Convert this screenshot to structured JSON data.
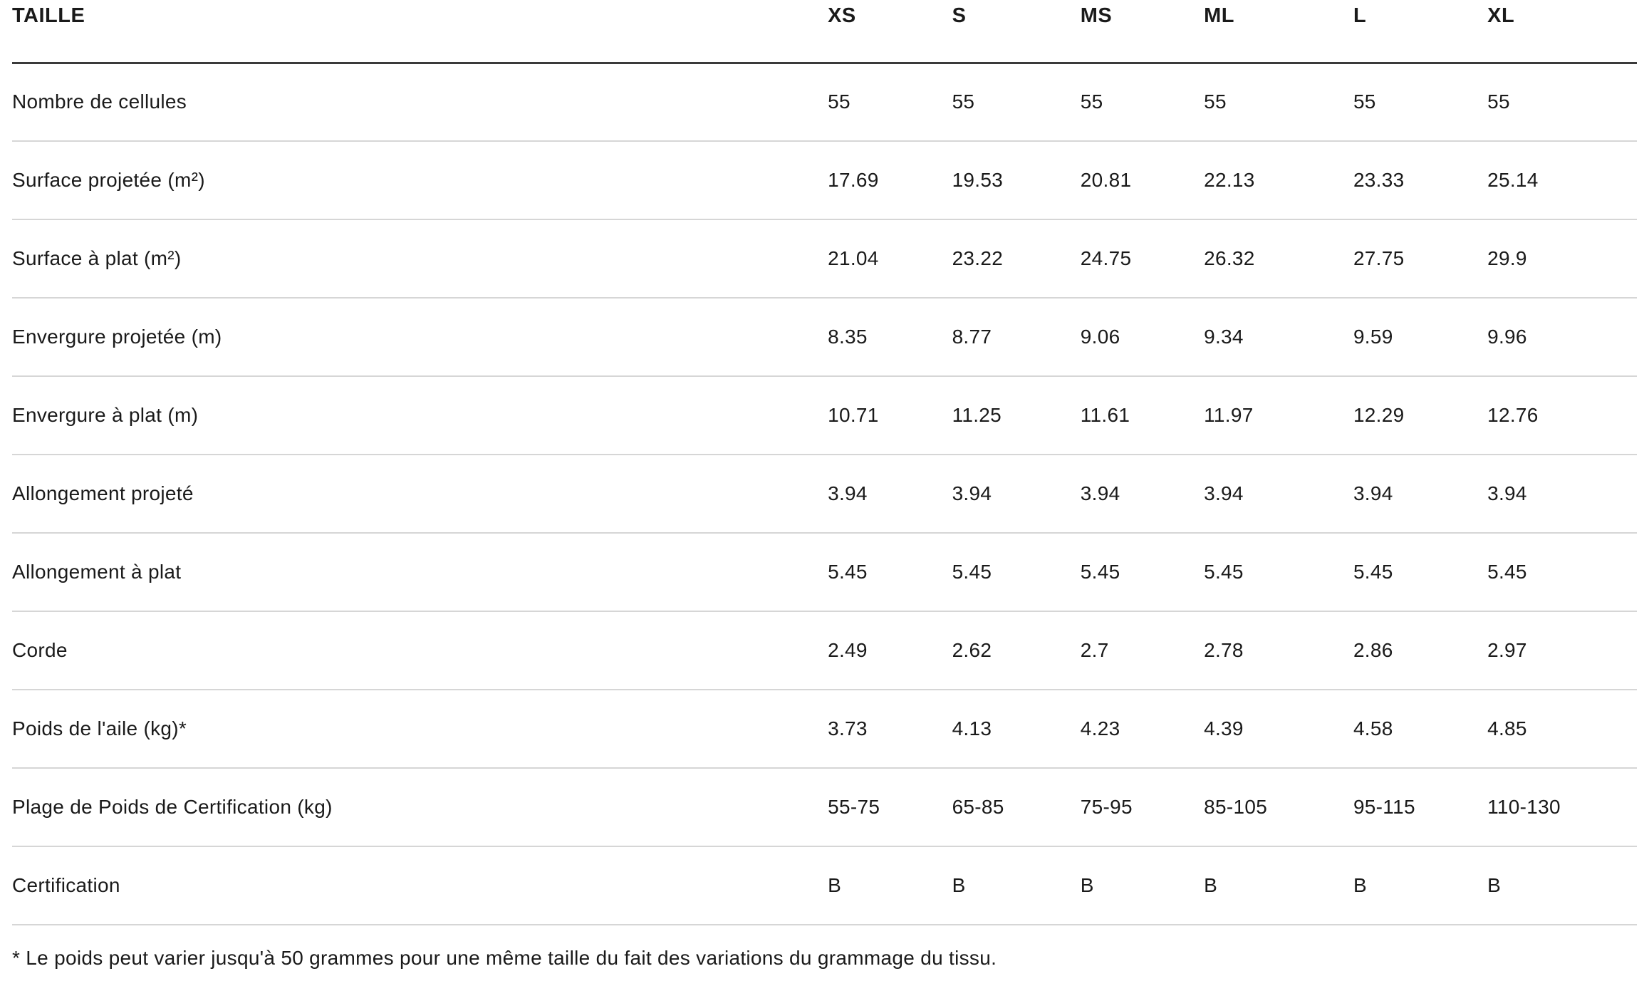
{
  "table": {
    "header": {
      "label": "TAILLE",
      "columns": [
        "XS",
        "S",
        "MS",
        "ML",
        "L",
        "XL"
      ]
    },
    "rows": [
      {
        "label": "Nombre de cellules",
        "values": [
          "55",
          "55",
          "55",
          "55",
          "55",
          "55"
        ]
      },
      {
        "label": "Surface projetée (m²)",
        "values": [
          "17.69",
          "19.53",
          "20.81",
          "22.13",
          "23.33",
          "25.14"
        ]
      },
      {
        "label": "Surface à plat (m²)",
        "values": [
          "21.04",
          "23.22",
          "24.75",
          "26.32",
          "27.75",
          "29.9"
        ]
      },
      {
        "label": "Envergure projetée (m)",
        "values": [
          "8.35",
          "8.77",
          "9.06",
          "9.34",
          "9.59",
          "9.96"
        ]
      },
      {
        "label": "Envergure à plat (m)",
        "values": [
          "10.71",
          "11.25",
          "11.61",
          "11.97",
          "12.29",
          "12.76"
        ]
      },
      {
        "label": "Allongement projeté",
        "values": [
          "3.94",
          "3.94",
          "3.94",
          "3.94",
          "3.94",
          "3.94"
        ]
      },
      {
        "label": "Allongement à plat",
        "values": [
          "5.45",
          "5.45",
          "5.45",
          "5.45",
          "5.45",
          "5.45"
        ]
      },
      {
        "label": "Corde",
        "values": [
          "2.49",
          "2.62",
          "2.7",
          "2.78",
          "2.86",
          "2.97"
        ]
      },
      {
        "label": "Poids de l'aile (kg)*",
        "values": [
          "3.73",
          "4.13",
          "4.23",
          "4.39",
          "4.58",
          "4.85"
        ]
      },
      {
        "label": "Plage de Poids de Certification (kg)",
        "values": [
          "55-75",
          "65-85",
          "75-95",
          "85-105",
          "95-115",
          "110-130"
        ]
      },
      {
        "label": "Certification",
        "values": [
          "B",
          "B",
          "B",
          "B",
          "B",
          "B"
        ]
      }
    ],
    "footnote": "* Le poids peut varier jusqu'à 50 grammes pour une même taille du fait des variations du grammage du tissu.",
    "colors": {
      "text": "#1a1a1a",
      "header_rule": "#3a3a3a",
      "row_rule": "#d6d6d6",
      "background": "#ffffff"
    }
  }
}
